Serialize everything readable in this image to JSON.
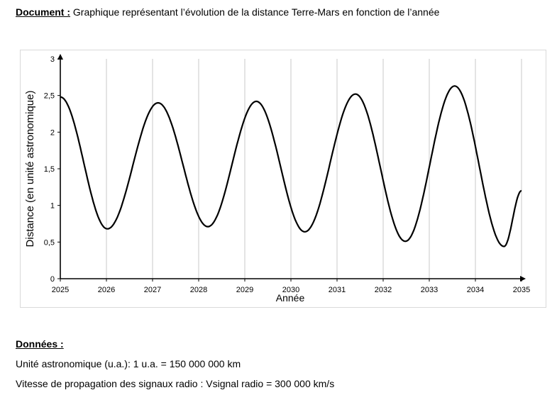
{
  "document": {
    "label": "Document :",
    "title": "Graphique représentant l’évolution de la distance Terre-Mars en fonction de l’année"
  },
  "donnees": {
    "title": "Données :",
    "items": [
      "Unité astronomique (u.a.): 1 u.a. = 150 000 000 km",
      "Vitesse de propagation des signaux radio : Vsignal radio = 300 000 km/s"
    ]
  },
  "chart_data": {
    "type": "line",
    "xlabel": "Année",
    "ylabel": "Distance (en unité astronomique)",
    "xlim": [
      2025,
      2035
    ],
    "ylim": [
      0,
      3
    ],
    "x_ticks": [
      "2025",
      "2026",
      "2027",
      "2028",
      "2029",
      "2030",
      "2031",
      "2032",
      "2033",
      "2034",
      "2035"
    ],
    "y_ticks": [
      "0",
      "0,5",
      "1",
      "1,5",
      "2",
      "2,5",
      "3"
    ],
    "grid": "vertical",
    "line_color": "#000000",
    "series": [
      {
        "x": [
          2025.0,
          2026.02,
          2027.12,
          2028.2,
          2029.25,
          2030.3,
          2031.4,
          2032.48,
          2033.55,
          2034.62,
          2035.0
        ],
        "y": [
          2.48,
          0.68,
          2.4,
          0.71,
          2.42,
          0.64,
          2.52,
          0.51,
          2.63,
          0.44,
          1.2
        ]
      }
    ]
  }
}
